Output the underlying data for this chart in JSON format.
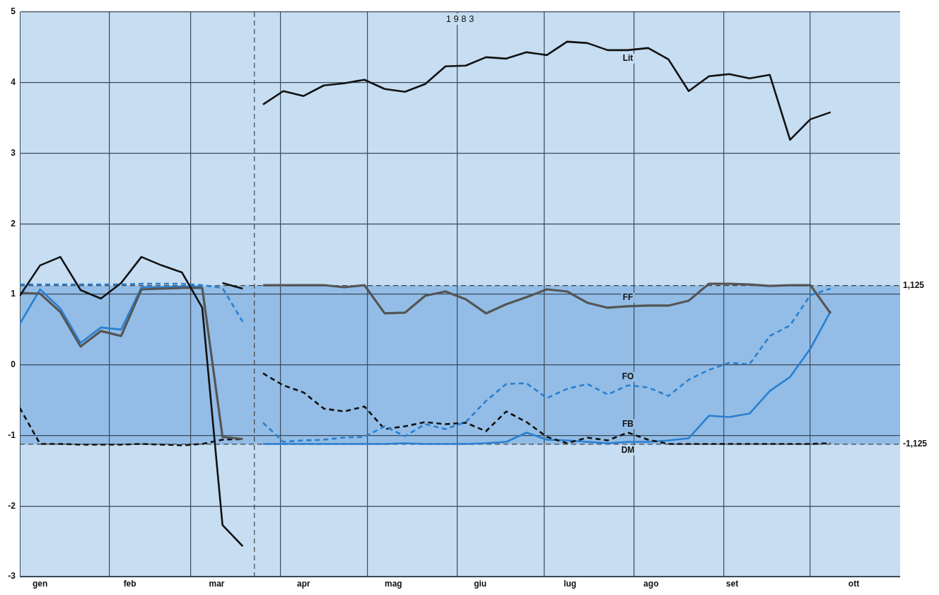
{
  "chart_data": {
    "type": "line",
    "title": "1 9 8 3",
    "x": [
      "--01-01",
      "--01-08",
      "--01-15",
      "--01-22",
      "--01-29",
      "--02-05",
      "--02-12",
      "--02-19",
      "--02-26",
      "--03-05",
      "--03-12",
      "--03-19",
      "--03-23",
      "--03-26",
      "--04-02",
      "--04-09",
      "--04-16",
      "--04-23",
      "--04-30",
      "--05-07",
      "--05-14",
      "--05-21",
      "--05-28",
      "--06-04",
      "--06-11",
      "--06-18",
      "--06-25",
      "--07-02",
      "--07-09",
      "--07-16",
      "--07-23",
      "--07-30",
      "--08-06",
      "--08-13",
      "--08-20",
      "--08-27",
      "--09-03",
      "--09-10",
      "--09-17",
      "--09-24",
      "--10-01",
      "--10-08"
    ],
    "series": [
      {
        "name": "Lit",
        "color": "#111111",
        "line_style": "solid",
        "values": [
          0.98,
          1.41,
          1.53,
          1.06,
          0.94,
          1.16,
          1.53,
          1.41,
          1.31,
          0.81,
          -2.27,
          -2.57,
          null,
          3.69,
          3.88,
          3.81,
          3.96,
          3.99,
          4.04,
          3.91,
          3.87,
          3.98,
          4.23,
          4.24,
          4.36,
          4.34,
          4.43,
          4.39,
          4.58,
          4.56,
          4.46,
          4.46,
          4.49,
          4.33,
          3.88,
          4.09,
          4.12,
          4.06,
          4.11,
          3.19,
          3.48,
          3.58
        ]
      },
      {
        "name": "FF",
        "color": "#555555",
        "line_style": "solid",
        "values": [
          1.02,
          1.01,
          0.75,
          0.26,
          0.48,
          0.41,
          1.07,
          1.08,
          1.09,
          1.09,
          -1.02,
          -1.05,
          null,
          1.13,
          1.13,
          1.13,
          1.13,
          1.1,
          1.13,
          0.73,
          0.74,
          0.98,
          1.04,
          0.93,
          0.73,
          0.86,
          0.96,
          1.07,
          1.04,
          0.88,
          0.81,
          0.83,
          0.84,
          0.84,
          0.91,
          1.15,
          1.15,
          1.14,
          1.12,
          1.13,
          1.13,
          0.73
        ]
      },
      {
        "name": "FO",
        "color": "#2a7fd0",
        "line_style": "dashed",
        "values": [
          1.14,
          1.14,
          1.14,
          1.14,
          1.14,
          1.14,
          1.15,
          1.15,
          1.15,
          1.13,
          1.09,
          0.61,
          null,
          -0.82,
          -1.09,
          -1.07,
          -1.06,
          -1.03,
          -1.02,
          -0.87,
          -1.01,
          -0.84,
          -0.91,
          -0.81,
          -0.51,
          -0.27,
          -0.26,
          -0.47,
          -0.34,
          -0.27,
          -0.42,
          -0.29,
          -0.32,
          -0.44,
          -0.21,
          -0.07,
          0.03,
          0.01,
          0.41,
          0.56,
          0.99,
          1.08
        ]
      },
      {
        "name": "FB",
        "color": "#111111",
        "line_style": "dashed",
        "values": [
          -0.61,
          -1.12,
          -1.12,
          -1.13,
          -1.13,
          -1.13,
          -1.12,
          -1.13,
          -1.14,
          -1.12,
          -1.06,
          -1.05,
          null,
          -0.12,
          -0.29,
          -0.39,
          -0.62,
          -0.66,
          -0.59,
          -0.91,
          -0.87,
          -0.81,
          -0.84,
          -0.82,
          -0.94,
          -0.66,
          -0.81,
          -1.02,
          -1.11,
          -1.03,
          -1.07,
          -0.96,
          -1.06,
          -1.12,
          -1.12,
          -1.12,
          -1.12,
          -1.12,
          -1.12,
          -1.12,
          -1.12,
          -1.11
        ]
      },
      {
        "name": "DM",
        "color": "#2a7fd0",
        "line_style": "solid",
        "values": [
          0.58,
          1.07,
          0.8,
          0.31,
          0.53,
          0.5,
          1.1,
          1.1,
          1.11,
          1.11,
          null,
          null,
          null,
          -1.12,
          -1.12,
          -1.12,
          -1.12,
          -1.12,
          -1.12,
          -1.12,
          -1.11,
          -1.12,
          -1.12,
          -1.12,
          -1.11,
          -1.09,
          -0.96,
          -1.06,
          -1.07,
          -1.09,
          -1.11,
          -1.09,
          -1.09,
          -1.07,
          -1.04,
          -0.72,
          -0.74,
          -0.69,
          -0.37,
          -0.17,
          0.23,
          0.76
        ]
      },
      {
        "color": "#111111",
        "line_style": "solid",
        "values": [
          null,
          null,
          null,
          null,
          null,
          null,
          null,
          null,
          null,
          null,
          1.16,
          1.08,
          null,
          null,
          null,
          null,
          null,
          null,
          null,
          null,
          null,
          null,
          null,
          null,
          null,
          null,
          null,
          null,
          null,
          null,
          null,
          null,
          null,
          null,
          null,
          null,
          null,
          null,
          null,
          null,
          null,
          null
        ]
      }
    ],
    "xlim": [
      "--01-01",
      "--11-01"
    ],
    "xticks": [
      {
        "value": "--01-08",
        "label": "gen"
      },
      {
        "value": "--02-01",
        "label": null
      },
      {
        "value": "--02-08",
        "label": "feb"
      },
      {
        "value": "--03-01",
        "label": null
      },
      {
        "value": "--03-10",
        "label": "mar"
      },
      {
        "value": "--04-01",
        "label": null
      },
      {
        "value": "--04-09",
        "label": "apr"
      },
      {
        "value": "--05-01",
        "label": null
      },
      {
        "value": "--05-10",
        "label": "mag"
      },
      {
        "value": "--06-01",
        "label": null
      },
      {
        "value": "--06-09",
        "label": "giu"
      },
      {
        "value": "--07-01",
        "label": null
      },
      {
        "value": "--07-10",
        "label": "lug"
      },
      {
        "value": "--08-01",
        "label": null
      },
      {
        "value": "--08-07",
        "label": "ago"
      },
      {
        "value": "--09-01",
        "label": null
      },
      {
        "value": "--09-04",
        "label": "set"
      },
      {
        "value": "--10-01",
        "label": null
      },
      {
        "value": "--10-16",
        "label": "ott"
      }
    ],
    "ylim": [
      -3,
      5
    ],
    "yticks": [
      -3,
      -2,
      -1,
      0,
      1,
      2,
      3,
      4,
      5
    ],
    "grid": true,
    "marker": "none",
    "legend": false,
    "ref_lines": [
      {
        "axis": "y",
        "value": 1.125,
        "label": "1,125",
        "color": "#444444",
        "line_style": "dashed"
      },
      {
        "axis": "y",
        "value": -1.125,
        "label": "-1,125",
        "color": "#444444",
        "line_style": "dashed"
      },
      {
        "axis": "x",
        "value": "--03-23",
        "color": "#444444",
        "line_style": "dashed"
      }
    ],
    "bands": [
      {
        "axis": "y",
        "from": -1.125,
        "to": 1.125,
        "color": "#93bde6"
      }
    ]
  }
}
